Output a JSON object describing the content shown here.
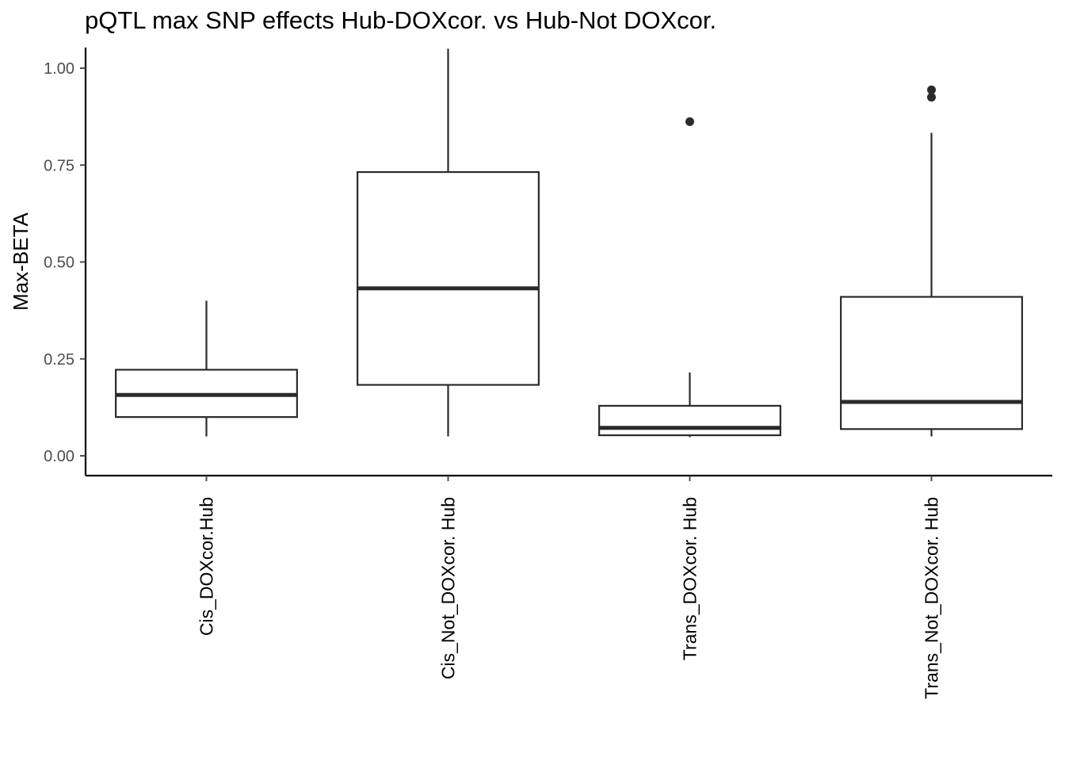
{
  "chart_data": {
    "type": "box",
    "title": "pQTL max SNP effects Hub-DOXcor. vs Hub-Not DOXcor.",
    "xlabel": "",
    "ylabel": "Max-BETA",
    "ylim": [
      -0.05,
      1.05
    ],
    "yticks": [
      0.0,
      0.25,
      0.5,
      0.75,
      1.0
    ],
    "ytick_labels": [
      "0.00",
      "0.25",
      "0.50",
      "0.75",
      "1.00"
    ],
    "grid": false,
    "legend": "none",
    "categories": [
      "Cis_DOXcor.Hub",
      "Cis_Not_DOXcor. Hub",
      "Trans_DOXcor. Hub",
      "Trans_Not_DOXcor. Hub"
    ],
    "boxes": [
      {
        "whisker_low": 0.05,
        "q1": 0.1,
        "median": 0.157,
        "q3": 0.222,
        "whisker_high": 0.4,
        "outliers": []
      },
      {
        "whisker_low": 0.05,
        "q1": 0.183,
        "median": 0.432,
        "q3": 0.732,
        "whisker_high": 1.05,
        "outliers": []
      },
      {
        "whisker_low": 0.048,
        "q1": 0.053,
        "median": 0.072,
        "q3": 0.129,
        "whisker_high": 0.215,
        "outliers": [
          0.862
        ]
      },
      {
        "whisker_low": 0.05,
        "q1": 0.069,
        "median": 0.139,
        "q3": 0.41,
        "whisker_high": 0.833,
        "outliers": [
          0.925,
          0.944
        ]
      }
    ],
    "colors": {
      "box_stroke": "#2b2b2b",
      "box_fill": "#ffffff",
      "axis": "#000000",
      "text": "#000000",
      "tick_label": "#4d4d4d"
    }
  }
}
